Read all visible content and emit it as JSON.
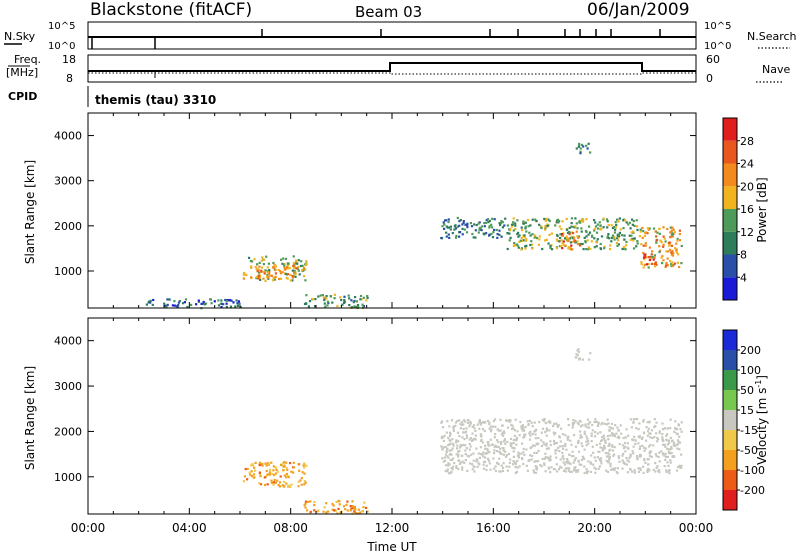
{
  "header": {
    "station": "Blackstone (fitACF)",
    "beam": "Beam 03",
    "date": "06/Jan/2009"
  },
  "top_panels": {
    "nsky_label": "N.Sky",
    "nsky_ticks": [
      "10^5",
      "10^0"
    ],
    "nsearch_label": "N.Search",
    "nsearch_ticks": [
      "10^5",
      "10^0"
    ],
    "freq_label": "Freq.",
    "freq_unit": "[MHz]",
    "freq_ticks": [
      "18",
      "8"
    ],
    "nave_label": "Nave",
    "nave_ticks": [
      "60",
      "0"
    ],
    "cpid_label": "CPID",
    "cpid_value": "themis (tau) 3310"
  },
  "colors": {
    "power_scale": [
      "#1a1ad6",
      "#2a4fa8",
      "#2e7d5a",
      "#4e9a58",
      "#f2b41e",
      "#f28a1e",
      "#e8581e",
      "#e01e1e"
    ],
    "velocity_scale": [
      "#e01e1e",
      "#ee5a18",
      "#f2a01e",
      "#f2c84a",
      "#c8c8c0",
      "#78c850",
      "#3a9a4a",
      "#2a4fa8",
      "#1a2ad6"
    ],
    "ground_scatter": "#c8c8c0"
  },
  "chart_data": [
    {
      "type": "heatmap",
      "title": "",
      "xlabel": "",
      "ylabel": "Slant Range [km]",
      "xlim": [
        "00:00",
        "24:00"
      ],
      "ylim": [
        180,
        4500
      ],
      "x_ticks": [
        "00:00",
        "04:00",
        "08:00",
        "12:00",
        "16:00",
        "20:00",
        "00:00"
      ],
      "y_ticks": [
        1000,
        2000,
        3000,
        4000
      ],
      "colorbar": {
        "label": "Power [dB]",
        "ticks": [
          "4",
          "8",
          "12",
          "16",
          "20",
          "24",
          "28"
        ],
        "range": [
          0,
          32
        ]
      },
      "regions": [
        {
          "t_start": 6.1,
          "t_end": 8.6,
          "range_min": 800,
          "range_max": 1350,
          "power": 14
        },
        {
          "t_start": 6.6,
          "t_end": 8.2,
          "range_min": 850,
          "range_max": 1150,
          "power": 20
        },
        {
          "t_start": 8.5,
          "t_end": 11.0,
          "range_min": 200,
          "range_max": 500,
          "power": 10
        },
        {
          "t_start": 13.9,
          "t_end": 16.5,
          "range_min": 1750,
          "range_max": 2200,
          "power": 8
        },
        {
          "t_start": 16.5,
          "t_end": 21.8,
          "range_min": 1500,
          "range_max": 2200,
          "power": 12
        },
        {
          "t_start": 18.6,
          "t_end": 19.4,
          "range_min": 1500,
          "range_max": 1900,
          "power": 22
        },
        {
          "t_start": 21.8,
          "t_end": 23.4,
          "range_min": 1100,
          "range_max": 2000,
          "power": 18
        },
        {
          "t_start": 21.9,
          "t_end": 22.3,
          "range_min": 1100,
          "range_max": 1400,
          "power": 30
        },
        {
          "t_start": 19.2,
          "t_end": 19.8,
          "range_min": 3600,
          "range_max": 3850,
          "power": 8
        },
        {
          "t_start": 2.0,
          "t_end": 6.0,
          "range_min": 200,
          "range_max": 400,
          "power": 6
        }
      ]
    },
    {
      "type": "heatmap",
      "title": "",
      "xlabel": "Time UT",
      "ylabel": "Slant Range [km]",
      "xlim": [
        "00:00",
        "24:00"
      ],
      "ylim": [
        180,
        4500
      ],
      "x_ticks": [
        "00:00",
        "04:00",
        "08:00",
        "12:00",
        "16:00",
        "20:00",
        "00:00"
      ],
      "y_ticks": [
        1000,
        2000,
        3000,
        4000
      ],
      "colorbar": {
        "label": "Velocity [m s-1]",
        "ticks": [
          "200",
          "100",
          "50",
          "15",
          "-15",
          "-50",
          "-100",
          "-200"
        ],
        "range": [
          -300,
          300
        ]
      },
      "regions": [
        {
          "t_start": 6.1,
          "t_end": 8.6,
          "range_min": 800,
          "range_max": 1350,
          "velocity": -60
        },
        {
          "t_start": 8.5,
          "t_end": 11.0,
          "range_min": 200,
          "range_max": 500,
          "velocity": -70
        },
        {
          "t_start": 13.9,
          "t_end": 23.4,
          "range_min": 1100,
          "range_max": 2300,
          "velocity": 0
        },
        {
          "t_start": 19.2,
          "t_end": 19.8,
          "range_min": 3600,
          "range_max": 3850,
          "velocity": 0
        }
      ]
    }
  ]
}
